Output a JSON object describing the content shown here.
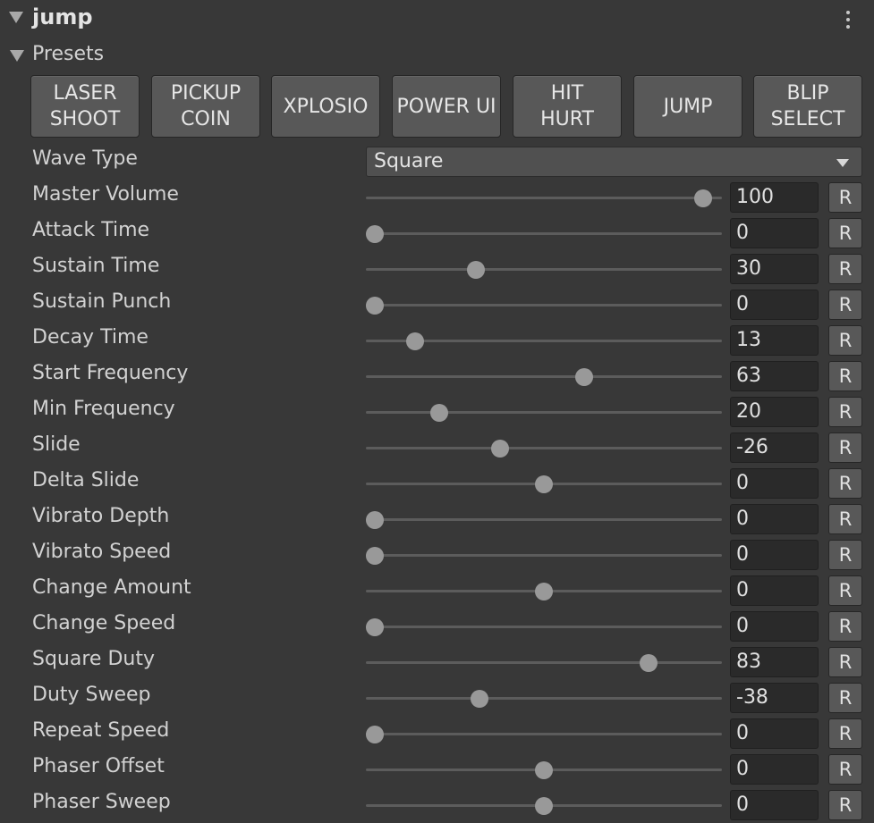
{
  "component": {
    "title": "jump",
    "menu_icon": "kebab-menu-icon"
  },
  "presets": {
    "label": "Presets",
    "buttons": [
      "LASER\nSHOOT",
      "PICKUP\nCOIN",
      "XPLOSIO",
      "POWER UI",
      "HIT\nHURT",
      "JUMP",
      "BLIP\nSELECT"
    ]
  },
  "wave_type": {
    "label": "Wave Type",
    "value": "Square"
  },
  "reset_label": "R",
  "params": [
    {
      "label": "Master Volume",
      "value": "100",
      "fraction": 0.97
    },
    {
      "label": "Attack Time",
      "value": "0",
      "fraction": 0.0
    },
    {
      "label": "Sustain Time",
      "value": "30",
      "fraction": 0.3
    },
    {
      "label": "Sustain Punch",
      "value": "0",
      "fraction": 0.0
    },
    {
      "label": "Decay Time",
      "value": "13",
      "fraction": 0.12
    },
    {
      "label": "Start Frequency",
      "value": "63",
      "fraction": 0.62
    },
    {
      "label": "Min Frequency",
      "value": "20",
      "fraction": 0.19
    },
    {
      "label": "Slide",
      "value": "-26",
      "fraction": 0.37
    },
    {
      "label": "Delta Slide",
      "value": "0",
      "fraction": 0.5
    },
    {
      "label": "Vibrato Depth",
      "value": "0",
      "fraction": 0.0
    },
    {
      "label": "Vibrato Speed",
      "value": "0",
      "fraction": 0.0
    },
    {
      "label": "Change Amount",
      "value": "0",
      "fraction": 0.5
    },
    {
      "label": "Change Speed",
      "value": "0",
      "fraction": 0.0
    },
    {
      "label": "Square Duty",
      "value": "83",
      "fraction": 0.81
    },
    {
      "label": "Duty Sweep",
      "value": "-38",
      "fraction": 0.31
    },
    {
      "label": "Repeat Speed",
      "value": "0",
      "fraction": 0.0
    },
    {
      "label": "Phaser Offset",
      "value": "0",
      "fraction": 0.5
    },
    {
      "label": "Phaser Sweep",
      "value": "0",
      "fraction": 0.5
    }
  ]
}
